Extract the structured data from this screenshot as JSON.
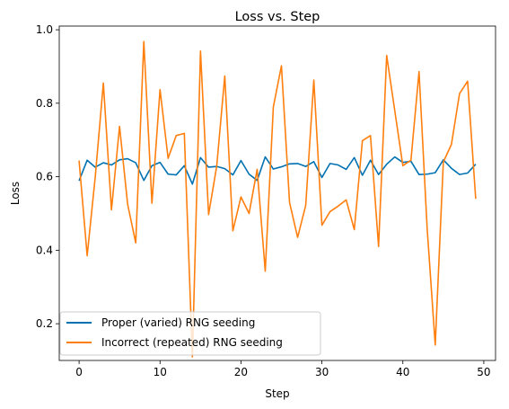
{
  "chart_data": {
    "type": "line",
    "title": "Loss vs. Step",
    "xlabel": "Step",
    "ylabel": "Loss",
    "xlim": [
      -2.45,
      51.45
    ],
    "ylim": [
      0.1,
      1.01
    ],
    "xticks": [
      0,
      10,
      20,
      30,
      40,
      50
    ],
    "yticks": [
      0.2,
      0.4,
      0.6,
      0.8,
      1.0
    ],
    "xtick_labels": [
      "0",
      "10",
      "20",
      "30",
      "40",
      "50"
    ],
    "ytick_labels": [
      "0.2",
      "0.4",
      "0.6",
      "0.8",
      "1.0"
    ],
    "grid": false,
    "legend_position": "lower-left",
    "x": [
      0,
      1,
      2,
      3,
      4,
      5,
      6,
      7,
      8,
      9,
      10,
      11,
      12,
      13,
      14,
      15,
      16,
      17,
      18,
      19,
      20,
      21,
      22,
      23,
      24,
      25,
      26,
      27,
      28,
      29,
      30,
      31,
      32,
      33,
      34,
      35,
      36,
      37,
      38,
      39,
      40,
      41,
      42,
      43,
      44,
      45,
      46,
      47,
      48,
      49
    ],
    "series": [
      {
        "name": "Proper (varied) RNG seeding",
        "color": "#0072b2",
        "values": [
          0.589,
          0.645,
          0.626,
          0.638,
          0.632,
          0.646,
          0.649,
          0.638,
          0.59,
          0.63,
          0.639,
          0.607,
          0.605,
          0.63,
          0.58,
          0.652,
          0.626,
          0.628,
          0.622,
          0.605,
          0.644,
          0.607,
          0.59,
          0.654,
          0.621,
          0.627,
          0.635,
          0.636,
          0.628,
          0.641,
          0.598,
          0.636,
          0.632,
          0.62,
          0.652,
          0.604,
          0.645,
          0.606,
          0.634,
          0.654,
          0.639,
          0.642,
          0.606,
          0.607,
          0.611,
          0.646,
          0.623,
          0.606,
          0.61,
          0.634
        ]
      },
      {
        "name": "Incorrect (repeated) RNG seeding",
        "color": "#ff7f0e",
        "values": [
          0.644,
          0.385,
          0.6,
          0.855,
          0.51,
          0.737,
          0.525,
          0.42,
          0.968,
          0.528,
          0.837,
          0.65,
          0.712,
          0.718,
          0.11,
          0.942,
          0.497,
          0.628,
          0.874,
          0.453,
          0.545,
          0.5,
          0.62,
          0.343,
          0.79,
          0.902,
          0.53,
          0.435,
          0.522,
          0.863,
          0.468,
          0.505,
          0.52,
          0.537,
          0.456,
          0.698,
          0.712,
          0.41,
          0.93,
          0.78,
          0.63,
          0.645,
          0.886,
          0.46,
          0.142,
          0.64,
          0.688,
          0.826,
          0.86,
          0.54
        ]
      }
    ]
  }
}
